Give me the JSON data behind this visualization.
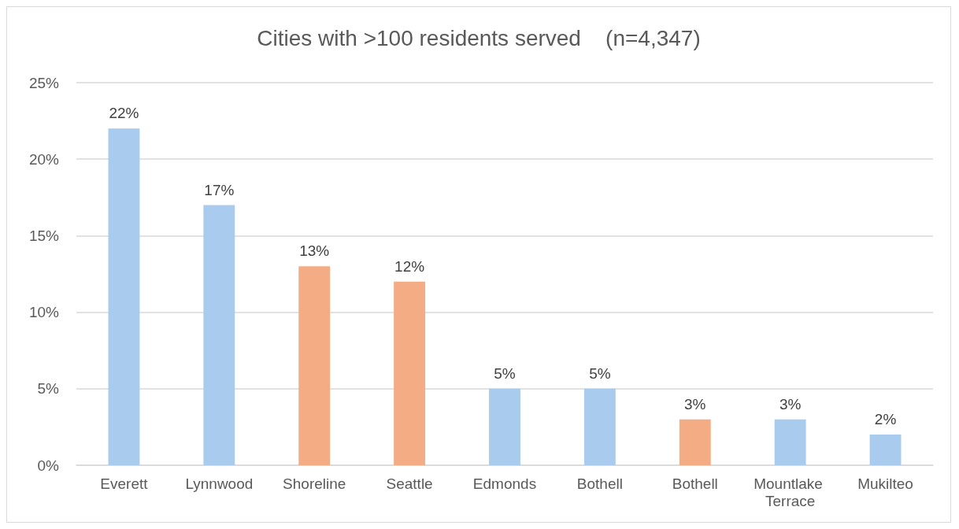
{
  "chart_data": {
    "type": "bar",
    "title": "Cities with >100 residents served    (n=4,347)",
    "categories": [
      "Everett",
      "Lynnwood",
      "Shoreline",
      "Seattle",
      "Edmonds",
      "Bothell",
      "Bothell",
      "Mountlake Terrace",
      "Mukilteo"
    ],
    "values": [
      22,
      17,
      13,
      12,
      5,
      5,
      3,
      3,
      2
    ],
    "colors": [
      "#a9cbed",
      "#a9cbed",
      "#f3ac84",
      "#f3ac84",
      "#a9cbed",
      "#a9cbed",
      "#f3ac84",
      "#a9cbed",
      "#a9cbed"
    ],
    "value_labels": [
      "22%",
      "17%",
      "13%",
      "12%",
      "5%",
      "5%",
      "3%",
      "3%",
      "2%"
    ],
    "ylim": [
      0,
      25
    ],
    "yticks": [
      {
        "value": 0,
        "label": "0%"
      },
      {
        "value": 5,
        "label": "5%"
      },
      {
        "value": 10,
        "label": "10%"
      },
      {
        "value": 15,
        "label": "15%"
      },
      {
        "value": 20,
        "label": "20%"
      },
      {
        "value": 25,
        "label": "25%"
      }
    ],
    "grid": "y"
  }
}
